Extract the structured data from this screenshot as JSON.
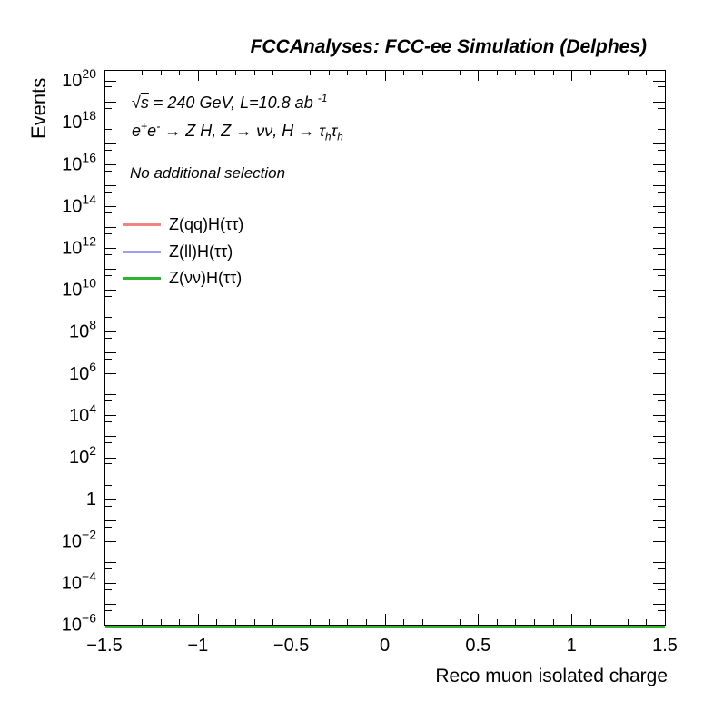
{
  "header": {
    "title": "FCCAnalyses: FCC-ee Simulation (Delphes)"
  },
  "annotations": {
    "line1_parts": [
      {
        "t": "√",
        "s": "n"
      },
      {
        "t": "s",
        "s": "ov"
      },
      {
        "t": " = 240 GeV, L=10.8 ab ",
        "s": "n"
      },
      {
        "t": "-1",
        "s": "sup"
      }
    ],
    "line2_parts": [
      {
        "t": "e",
        "s": "n"
      },
      {
        "t": "+",
        "s": "sup"
      },
      {
        "t": "e",
        "s": "n"
      },
      {
        "t": "-",
        "s": "sup"
      },
      {
        "t": " → Z H, Z  → νν, H  → τ",
        "s": "n"
      },
      {
        "t": "h",
        "s": "sub"
      },
      {
        "t": "τ",
        "s": "n"
      },
      {
        "t": "h",
        "s": "sub"
      }
    ],
    "selection": "No additional selection"
  },
  "legend": {
    "entries": [
      {
        "label": "Z(qq)H(ττ)",
        "color": "#f2837e"
      },
      {
        "label": "Z(ll)H(ττ)",
        "color": "#9e9ef0"
      },
      {
        "label": "Z(νν)H(ττ)",
        "color": "#30b330"
      }
    ]
  },
  "chart_data": {
    "type": "line",
    "title": "FCCAnalyses: FCC-ee Simulation (Delphes)",
    "xlabel": "Reco muon isolated charge",
    "ylabel": "Events",
    "x_range": [
      -1.5,
      1.5
    ],
    "x_major_tick_values": [
      -1.5,
      -1,
      -0.5,
      0,
      0.5,
      1,
      1.5
    ],
    "x_major_tick_labels": [
      "−1.5",
      "−1",
      "−0.5",
      "0",
      "0.5",
      "1",
      "1.5"
    ],
    "x_minor_tick_step": 0.1,
    "y_scale": "log",
    "y_min": 1e-06,
    "y_max": 3e+20,
    "y_min_exponent": -6,
    "y_max_exponent_edge": 20.5,
    "y_labeled_exponents": [
      20,
      18,
      16,
      14,
      12,
      10,
      8,
      6,
      4,
      2,
      0,
      -2,
      -4,
      -6
    ],
    "grid": false,
    "legend_position": "upper-left-inside",
    "frame_color": "#000000",
    "series": [
      {
        "name": "Z(qq)H(ττ)",
        "color": "#f2837e",
        "x": [
          -1.5,
          1.5
        ],
        "y": [
          1e-06,
          1e-06
        ],
        "note": "empty histogram, flat line clamped at y-axis floor"
      },
      {
        "name": "Z(ll)H(ττ)",
        "color": "#9e9ef0",
        "x": [
          -1.5,
          1.5
        ],
        "y": [
          1e-06,
          1e-06
        ],
        "note": "empty histogram, flat line clamped at y-axis floor"
      },
      {
        "name": "Z(νν)H(ττ)",
        "color": "#30b330",
        "x": [
          -1.5,
          1.5
        ],
        "y": [
          1e-06,
          1e-06
        ],
        "note": "empty histogram, flat line clamped at y-axis floor, drawn on top"
      }
    ]
  }
}
